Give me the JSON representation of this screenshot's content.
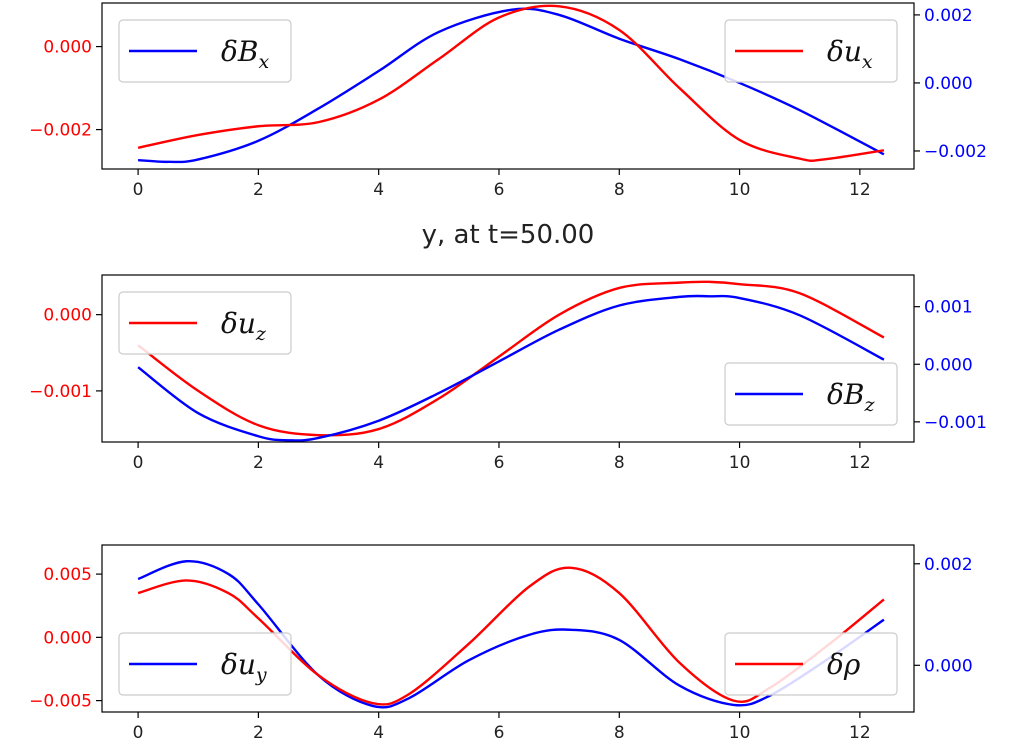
{
  "figure": {
    "xlabel": "y, at t=50.00",
    "colors": {
      "red": "#ff0000",
      "blue": "#0000ff",
      "axis": "#000000",
      "text": "#222222"
    }
  },
  "chart_data": [
    {
      "type": "line",
      "x_range": [
        -0.6,
        12.9
      ],
      "x_ticks": [
        0,
        2,
        4,
        6,
        8,
        10,
        12
      ],
      "left_axis": {
        "color": "#ff0000",
        "ylim": [
          -0.00295,
          0.00105
        ],
        "ticks": [
          0.0,
          -0.002
        ],
        "tick_labels": [
          "0.000",
          "−0.002"
        ]
      },
      "right_axis": {
        "color": "#0000ff",
        "ylim": [
          -0.00253,
          0.00235
        ],
        "ticks": [
          0.002,
          0.0,
          -0.002
        ],
        "tick_labels": [
          "0.002",
          "0.000",
          "−0.002"
        ]
      },
      "series": [
        {
          "name": "δB",
          "subscript": "x",
          "axis": "right",
          "color": "#0000ff",
          "x": [
            0.0,
            0.5,
            1.0,
            2.0,
            3.0,
            4.0,
            5.0,
            6.2,
            7.0,
            8.0,
            9.0,
            10.0,
            11.0,
            12.4
          ],
          "y": [
            -0.00227,
            -0.00232,
            -0.00225,
            -0.0017,
            -0.00075,
            0.00035,
            0.0015,
            0.00215,
            0.002,
            0.0013,
            0.0007,
            0.0,
            -0.0008,
            -0.0021
          ]
        },
        {
          "name": "δu",
          "subscript": "x",
          "axis": "left",
          "color": "#ff0000",
          "x": [
            0.0,
            1.0,
            2.0,
            3.0,
            4.0,
            5.0,
            6.0,
            7.0,
            8.0,
            9.0,
            10.0,
            11.0,
            11.4,
            12.4
          ],
          "y": [
            -0.00244,
            -0.00213,
            -0.00192,
            -0.00182,
            -0.00128,
            -0.0003,
            0.0007,
            0.00097,
            0.0004,
            -0.001,
            -0.00225,
            -0.0027,
            -0.00272,
            -0.0025
          ]
        }
      ],
      "legends": [
        {
          "series": 0,
          "position": "upper-left"
        },
        {
          "series": 1,
          "position": "upper-right"
        }
      ]
    },
    {
      "type": "line",
      "x_range": [
        -0.6,
        12.9
      ],
      "x_ticks": [
        0,
        2,
        4,
        6,
        8,
        10,
        12
      ],
      "left_axis": {
        "color": "#ff0000",
        "ylim": [
          -0.00167,
          0.00052
        ],
        "ticks": [
          0.0,
          -0.001
        ],
        "tick_labels": [
          "0.000",
          "−0.001"
        ]
      },
      "right_axis": {
        "color": "#0000ff",
        "ylim": [
          -0.00135,
          0.00155
        ],
        "ticks": [
          0.001,
          0.0,
          -0.001
        ],
        "tick_labels": [
          "0.001",
          "0.000",
          "−0.001"
        ]
      },
      "series": [
        {
          "name": "δu",
          "subscript": "z",
          "axis": "left",
          "color": "#ff0000",
          "x": [
            0.0,
            1.0,
            2.0,
            3.0,
            4.0,
            5.0,
            6.0,
            7.0,
            8.0,
            9.0,
            9.5,
            10.0,
            11.0,
            12.4
          ],
          "y": [
            -0.0004,
            -0.001,
            -0.00145,
            -0.00158,
            -0.0015,
            -0.0011,
            -0.00055,
            0.0,
            0.00035,
            0.00042,
            0.00043,
            0.0004,
            0.00028,
            -0.0003
          ]
        },
        {
          "name": "δB",
          "subscript": "z",
          "axis": "right",
          "color": "#0000ff",
          "x": [
            0.0,
            1.0,
            2.0,
            2.5,
            3.0,
            4.0,
            5.0,
            6.0,
            7.0,
            8.0,
            9.0,
            9.5,
            10.0,
            11.0,
            12.4
          ],
          "y": [
            -5e-05,
            -0.00085,
            -0.00125,
            -0.00132,
            -0.00128,
            -0.00098,
            -0.0005,
            5e-05,
            0.0006,
            0.00102,
            0.00117,
            0.00118,
            0.00115,
            0.00085,
            8e-05
          ]
        }
      ],
      "legends": [
        {
          "series": 0,
          "position": "upper-left"
        },
        {
          "series": 1,
          "position": "lower-right"
        }
      ]
    },
    {
      "type": "line",
      "x_range": [
        -0.6,
        12.9
      ],
      "x_ticks": [
        0,
        2,
        4,
        6,
        8,
        10,
        12
      ],
      "left_axis": {
        "color": "#ff0000",
        "ylim": [
          -0.0059,
          0.0073
        ],
        "ticks": [
          0.005,
          0.0,
          -0.005
        ],
        "tick_labels": [
          "0.005",
          "0.000",
          "−0.005"
        ]
      },
      "right_axis": {
        "color": "#0000ff",
        "ylim": [
          -0.00092,
          0.00237
        ],
        "ticks": [
          0.002,
          0.0
        ],
        "tick_labels": [
          "0.002",
          "0.000"
        ]
      },
      "series": [
        {
          "name": "δu",
          "subscript": "y",
          "axis": "right",
          "color": "#0000ff",
          "x": [
            0.0,
            0.8,
            1.5,
            2.0,
            3.0,
            3.9,
            4.5,
            5.5,
            6.5,
            7.2,
            8.0,
            9.0,
            9.9,
            10.5,
            11.5,
            12.4
          ],
          "y": [
            0.0017,
            0.00205,
            0.0018,
            0.0012,
            -0.0002,
            -0.0008,
            -0.00065,
            0.0001,
            0.0006,
            0.0007,
            0.0005,
            -0.0004,
            -0.00078,
            -0.0006,
            0.00015,
            0.0009
          ]
        },
        {
          "name": "δρ",
          "subscript": "",
          "axis": "left",
          "color": "#ff0000",
          "x": [
            0.0,
            0.8,
            1.5,
            2.0,
            3.0,
            3.9,
            4.5,
            5.5,
            6.5,
            7.2,
            8.0,
            9.0,
            9.9,
            10.5,
            11.5,
            12.4
          ],
          "y": [
            0.0035,
            0.0045,
            0.0035,
            0.0015,
            -0.003,
            -0.0052,
            -0.0045,
            -0.0005,
            0.004,
            0.0055,
            0.0035,
            -0.002,
            -0.005,
            -0.004,
            -0.0005,
            0.003
          ]
        }
      ],
      "legends": [
        {
          "series": 0,
          "position": "lower-left"
        },
        {
          "series": 1,
          "position": "lower-right"
        }
      ]
    }
  ]
}
